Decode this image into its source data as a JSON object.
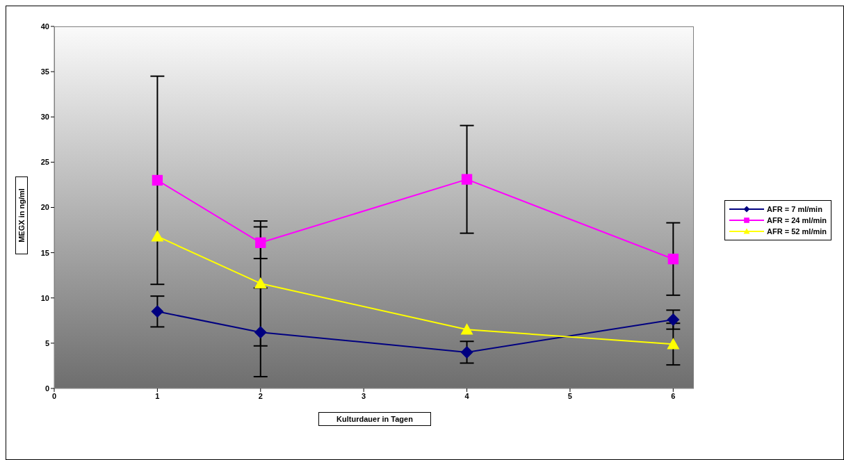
{
  "chart_data": {
    "type": "line",
    "xlabel": "Kulturdauer in Tagen",
    "ylabel": "MEGX in ng/ml",
    "x": [
      1,
      2,
      4,
      6
    ],
    "series": [
      {
        "name": "AFR = 7 ml/min",
        "color": "#000080",
        "marker": "diamond",
        "values": [
          8.5,
          6.2,
          4.0,
          7.6
        ],
        "errors": [
          1.7,
          4.9,
          1.2,
          1.05
        ]
      },
      {
        "name": "AFR = 24 ml/min",
        "color": "#ff00ff",
        "marker": "square",
        "values": [
          23.0,
          16.1,
          23.1,
          14.3
        ],
        "errors": [
          11.5,
          1.75,
          5.95,
          4.0
        ]
      },
      {
        "name": "AFR = 52 ml/min",
        "color": "#ffff00",
        "marker": "triangle",
        "values": [
          16.8,
          11.6,
          6.5,
          4.9
        ],
        "errors": [
          null,
          6.9,
          null,
          2.3
        ]
      }
    ],
    "xlim": [
      0,
      6.2
    ],
    "xticks": [
      0,
      1,
      2,
      3,
      4,
      5,
      6
    ],
    "ylim": [
      0,
      40
    ],
    "yticks": [
      0,
      5,
      10,
      15,
      20,
      25,
      30,
      35,
      40
    ],
    "legend": "right",
    "grid": false,
    "line_style": "solid"
  }
}
